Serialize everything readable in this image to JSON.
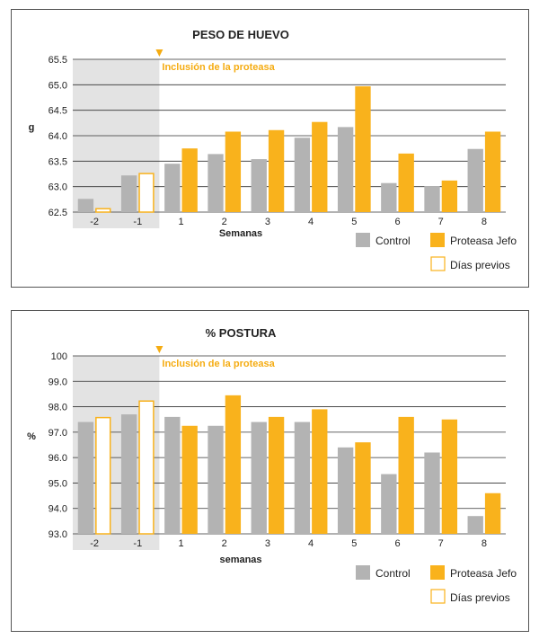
{
  "colors": {
    "control": "#b3b3b3",
    "jefo": "#f9b21c",
    "previos_stroke": "#f9b21c",
    "shade": "#e3e3e3",
    "grid": "#333333",
    "annotation": "#f5ac12"
  },
  "legend": {
    "control": "Control",
    "jefo": "Proteasa Jefo",
    "previos": "Días previos"
  },
  "chart_data": [
    {
      "type": "bar",
      "title": "PESO DE HUEVO",
      "xlabel": "Semanas",
      "ylabel": "g",
      "ylim": [
        62.5,
        65.5
      ],
      "yticks": [
        "62.5",
        "63.0",
        "63.5",
        "64.0",
        "64.5",
        "65.0",
        "65.5"
      ],
      "categories": [
        "-2",
        "-1",
        "1",
        "2",
        "3",
        "4",
        "5",
        "6",
        "7",
        "8"
      ],
      "annotation": "Inclusión de la proteasa",
      "shaded_categories": [
        "-2",
        "-1"
      ],
      "series": [
        {
          "name": "Control",
          "values": [
            62.76,
            63.22,
            63.45,
            63.64,
            63.54,
            63.96,
            64.17,
            63.07,
            63.01,
            63.74
          ]
        },
        {
          "name": "Proteasa Jefo",
          "values": [
            62.58,
            63.27,
            63.75,
            64.08,
            64.11,
            64.27,
            64.97,
            63.65,
            63.12,
            64.08
          ]
        }
      ],
      "previos_categories": [
        "-2",
        "-1"
      ],
      "grid": true
    },
    {
      "type": "bar",
      "title": "% POSTURA",
      "xlabel": "semanas",
      "ylabel": "%",
      "ylim": [
        93.0,
        100.0
      ],
      "yticks": [
        "93.0",
        "94.0",
        "95.0",
        "96.0",
        "97.0",
        "98.0",
        "99.0",
        "100"
      ],
      "categories": [
        "-2",
        "-1",
        "1",
        "2",
        "3",
        "4",
        "5",
        "6",
        "7",
        "8"
      ],
      "annotation": "Inclusión de la proteasa",
      "shaded_categories": [
        "-2",
        "-1"
      ],
      "series": [
        {
          "name": "Control",
          "values": [
            97.4,
            97.7,
            97.6,
            97.25,
            97.4,
            97.4,
            96.4,
            95.35,
            96.2,
            93.7
          ]
        },
        {
          "name": "Proteasa Jefo",
          "values": [
            97.6,
            98.25,
            97.25,
            98.45,
            97.6,
            97.9,
            96.6,
            97.6,
            97.5,
            94.6
          ]
        }
      ],
      "previos_categories": [
        "-2",
        "-1"
      ],
      "grid": true
    }
  ]
}
